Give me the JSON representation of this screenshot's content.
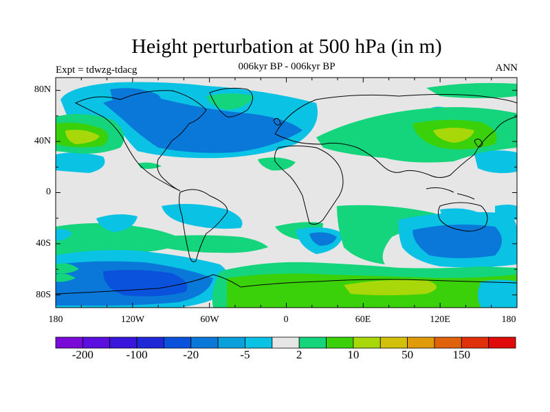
{
  "header": {
    "title": "Height perturbation at 500 hPa (in m)",
    "subtitle": "006kyr BP - 006kyr BP",
    "left_string": "Expt = tdwzg-tdacg",
    "right_string": "ANN"
  },
  "map": {
    "projection": "cylindrical equidistant",
    "lon_range": [
      -180,
      180
    ],
    "lat_range": [
      -90,
      90
    ],
    "y_tick_labels": [
      "80N",
      "40N",
      "0",
      "40S",
      "80S"
    ],
    "x_tick_labels": [
      "180",
      "120W",
      "60W",
      "0",
      "60E",
      "120E",
      "180"
    ],
    "ocean_background_color": "#e6e6e6",
    "coastline_color": "#000000"
  },
  "colorbar": {
    "colors": [
      "#7a0ad8",
      "#5c0ee0",
      "#3a16dc",
      "#1e28d6",
      "#0a52dc",
      "#0a78d8",
      "#0aa0dc",
      "#0ac2e4",
      "#e6e6e6",
      "#14d47c",
      "#3ad00a",
      "#a8d80a",
      "#d2c00a",
      "#e09a0a",
      "#e0620a",
      "#e0300a",
      "#e00a0a"
    ],
    "labels": [
      {
        "text": "-200",
        "edge": 1
      },
      {
        "text": "-100",
        "edge": 3
      },
      {
        "text": "-20",
        "edge": 5
      },
      {
        "text": "-5",
        "edge": 7
      },
      {
        "text": "2",
        "edge": 9
      },
      {
        "text": "10",
        "edge": 11
      },
      {
        "text": "50",
        "edge": 13
      },
      {
        "text": "150",
        "edge": 15
      }
    ]
  }
}
